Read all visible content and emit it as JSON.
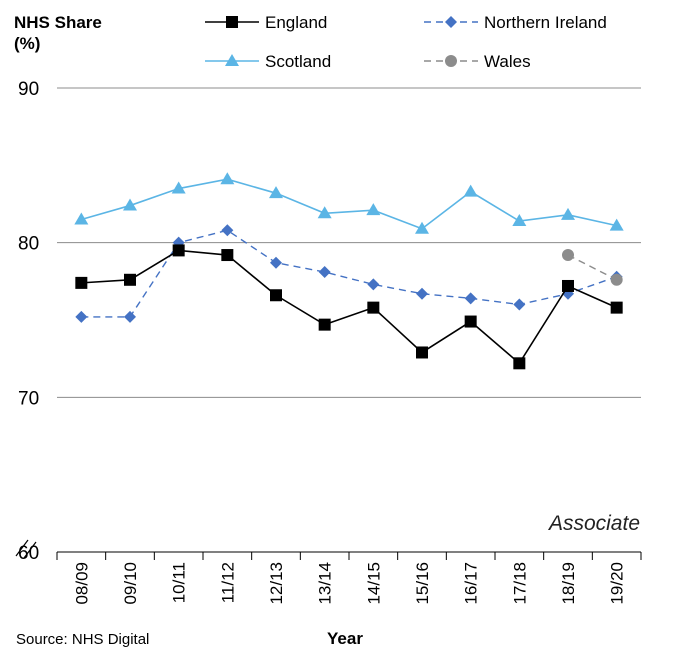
{
  "title_lines": [
    "NHS Share",
    "(%)"
  ],
  "source": "Source: NHS Digital",
  "panel_label": "Associate",
  "chart_data": {
    "type": "line",
    "xlabel": "Year",
    "ylabel": "NHS Share (%)",
    "ylim": [
      60,
      90
    ],
    "yticks": [
      60,
      70,
      80,
      90
    ],
    "grid": true,
    "legend_position": "top",
    "categories": [
      "08/09",
      "09/10",
      "10/11",
      "11/12",
      "12/13",
      "13/14",
      "14/15",
      "15/16",
      "16/17",
      "17/18",
      "18/19",
      "19/20"
    ],
    "series": [
      {
        "name": "England",
        "color": "#000000",
        "dash": "solid",
        "marker": "square",
        "values": [
          77.4,
          77.6,
          79.5,
          79.2,
          76.6,
          74.7,
          75.8,
          72.9,
          74.9,
          72.2,
          77.2,
          75.8
        ]
      },
      {
        "name": "Northern Ireland",
        "color": "#4472C4",
        "dash": "dashed",
        "marker": "diamond",
        "values": [
          75.2,
          75.2,
          80.0,
          80.8,
          78.7,
          78.1,
          77.3,
          76.7,
          76.4,
          76.0,
          76.7,
          77.8
        ]
      },
      {
        "name": "Scotland",
        "color": "#5BB5E5",
        "dash": "solid",
        "marker": "triangle",
        "values": [
          81.5,
          82.4,
          83.5,
          84.1,
          83.2,
          81.9,
          82.1,
          80.9,
          83.3,
          81.4,
          81.8,
          81.1
        ]
      },
      {
        "name": "Wales",
        "color": "#8C8C8C",
        "dash": "dashed",
        "marker": "circle",
        "values": [
          null,
          null,
          null,
          null,
          null,
          null,
          null,
          null,
          null,
          null,
          79.2,
          77.6
        ]
      }
    ]
  }
}
